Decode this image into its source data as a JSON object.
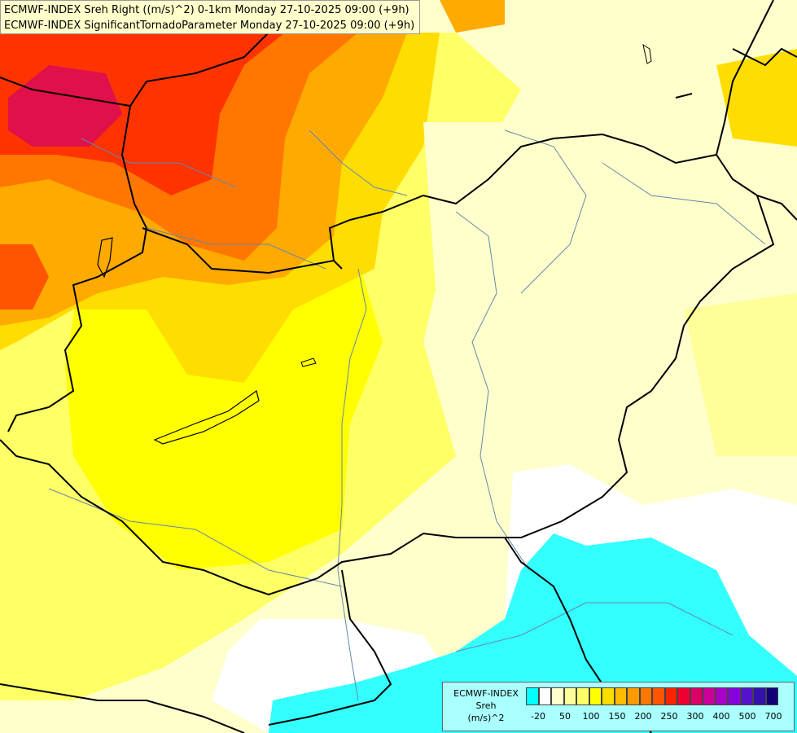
{
  "header": {
    "line1": "ECMWF-INDEX Sreh Right ((m/s)^2) 0-1km Monday 27-10-2025 09:00 (+9h)",
    "line2": "ECMWF-INDEX SignificantTornadoParameter Monday 27-10-2025 09:00 (+9h)"
  },
  "legend": {
    "title_line1": "ECMWF-INDEX",
    "title_line2": "Sreh",
    "title_line3": "(m/s)^2",
    "colors": [
      "#00ffff",
      "#ffffff",
      "#ffffcc",
      "#ffff99",
      "#ffff66",
      "#ffff00",
      "#ffdd00",
      "#ffbb00",
      "#ff9900",
      "#ff7700",
      "#ff5500",
      "#ff2200",
      "#ee0033",
      "#dd0066",
      "#cc0099",
      "#aa00cc",
      "#8800dd",
      "#5511cc",
      "#3311aa",
      "#110077"
    ],
    "ticks": [
      "-20",
      "50",
      "100",
      "150",
      "200",
      "250",
      "300",
      "400",
      "500",
      "700"
    ]
  },
  "map": {
    "field_colors": {
      "cyan": "#33ffff",
      "white": "#ffffff",
      "pale": "#ffffcc",
      "light_yellow": "#ffff99",
      "yellow": "#ffff00",
      "gold": "#ffdd00",
      "orange": "#ffaa00",
      "dark_orange": "#ff7700",
      "red": "#ff2200",
      "crimson": "#e0104a"
    },
    "border_color": "#000000",
    "river_color": "#6688aa"
  }
}
